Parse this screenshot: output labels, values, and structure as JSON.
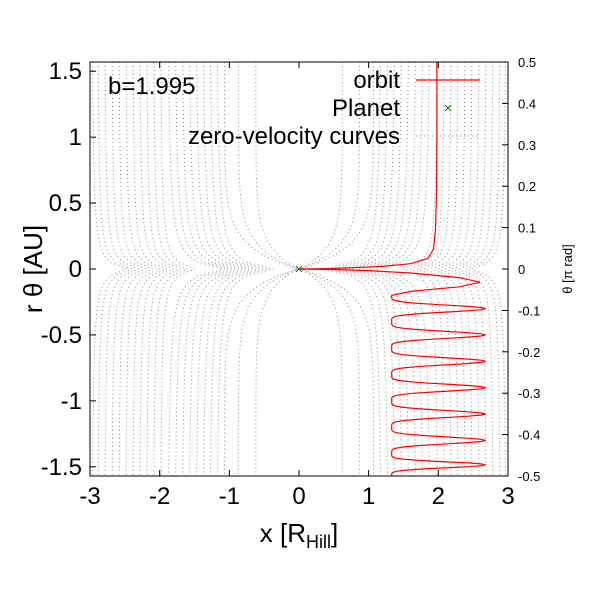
{
  "chart_data": {
    "type": "line",
    "annotation": "b=1.995",
    "xlabel": "x [R",
    "xlabel_sub": "Hill",
    "xlabel_end": "]",
    "ylabel": "r θ [AU]",
    "y2label": "θ [π rad]",
    "xlim": [
      -3,
      3
    ],
    "ylim": [
      -1.57,
      1.57
    ],
    "y2lim": [
      -0.5,
      0.5
    ],
    "xticks": [
      "-3",
      "-2",
      "-1",
      "0",
      "1",
      "2",
      "3"
    ],
    "yticks": [
      "-1.5",
      "-1",
      "-0.5",
      "0",
      "0.5",
      "1",
      "1.5"
    ],
    "y2ticks": [
      "-0.5",
      "-0.4",
      "-0.3",
      "-0.2",
      "-0.1",
      "0",
      "0.1",
      "0.2",
      "0.3",
      "0.4",
      "0.5"
    ],
    "legend": {
      "position": "top-right",
      "entries": [
        "orbit",
        "Planet",
        "zero-velocity curves"
      ]
    },
    "colors": {
      "orbit": "#ff0000",
      "planet": "#008000",
      "zvc": "#888888",
      "axis": "#000000"
    },
    "series": [
      {
        "name": "orbit",
        "style": "solid",
        "points": [
          [
            1.98,
            1.57
          ],
          [
            1.98,
            1.0
          ],
          [
            1.975,
            0.6
          ],
          [
            1.96,
            0.3
          ],
          [
            1.93,
            0.15
          ],
          [
            1.85,
            0.08
          ],
          [
            1.6,
            0.04
          ],
          [
            1.2,
            0.02
          ],
          [
            0.7,
            0.008
          ],
          [
            0.4,
            0.003
          ],
          [
            0.0,
            0.0
          ],
          [
            0.5,
            -0.004
          ],
          [
            1.0,
            -0.012
          ],
          [
            1.6,
            -0.03
          ],
          [
            2.3,
            -0.065
          ],
          [
            2.6,
            -0.1
          ],
          [
            2.3,
            -0.135
          ],
          [
            1.6,
            -0.17
          ],
          [
            1.33,
            -0.2
          ]
        ],
        "oscillation": {
          "turning_points_y": [
            -0.2,
            -0.4,
            -0.6,
            -0.8,
            -1.0,
            -1.2,
            -1.4,
            -1.57
          ],
          "x_left": 1.33,
          "x_right": 2.68
        }
      },
      {
        "name": "Planet",
        "style": "marker-x",
        "points": [
          [
            0,
            0
          ]
        ]
      },
      {
        "name": "zero-velocity curves",
        "style": "dotted",
        "contour_x_asymptotes": [
          -2.98,
          -2.9,
          -2.8,
          -2.7,
          -2.6,
          -2.5,
          -2.4,
          -2.3,
          -2.2,
          -2.1,
          -2.0,
          -1.9,
          -1.8,
          -1.7,
          -1.6,
          -1.5,
          -1.4,
          -1.3,
          -1.2,
          -1.05,
          -0.85,
          -0.6,
          0.6,
          0.85,
          1.05,
          1.2,
          1.3,
          1.4,
          1.5,
          1.6,
          1.7,
          1.8,
          1.9,
          2.0,
          2.1,
          2.2,
          2.3,
          2.4,
          2.5,
          2.6,
          2.7,
          2.8,
          2.9,
          2.98
        ]
      }
    ]
  }
}
